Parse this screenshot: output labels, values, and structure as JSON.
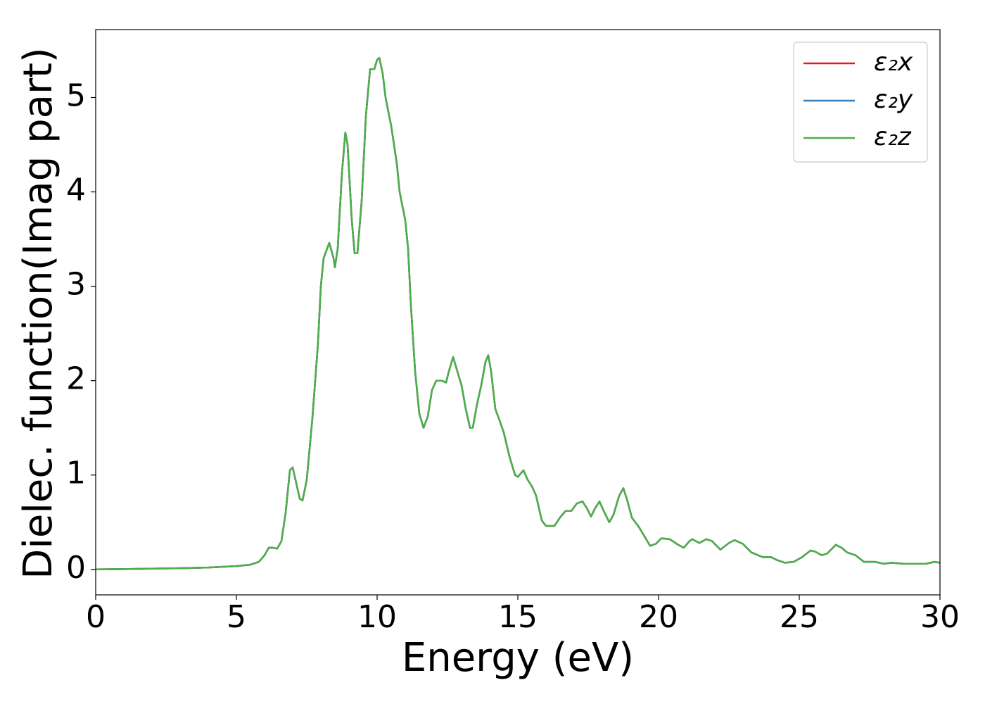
{
  "chart_data": {
    "type": "line",
    "xlabel": "Energy (eV)",
    "ylabel": "Dielec. function(Imag part)",
    "x": [
      0,
      1,
      2,
      3,
      4,
      5,
      5.5,
      5.8,
      6.0,
      6.15,
      6.3,
      6.45,
      6.6,
      6.75,
      6.9,
      7.0,
      7.1,
      7.25,
      7.35,
      7.5,
      7.7,
      7.9,
      8.0,
      8.1,
      8.3,
      8.45,
      8.5,
      8.6,
      8.75,
      8.87,
      8.95,
      9.1,
      9.2,
      9.3,
      9.45,
      9.6,
      9.75,
      9.9,
      10.0,
      10.08,
      10.2,
      10.3,
      10.5,
      10.7,
      10.8,
      11.0,
      11.1,
      11.2,
      11.35,
      11.5,
      11.65,
      11.8,
      11.95,
      12.1,
      12.3,
      12.45,
      12.55,
      12.7,
      12.85,
      13.0,
      13.15,
      13.3,
      13.4,
      13.55,
      13.7,
      13.85,
      13.95,
      14.05,
      14.2,
      14.35,
      14.5,
      14.7,
      14.9,
      15.0,
      15.2,
      15.35,
      15.5,
      15.65,
      15.85,
      16.0,
      16.3,
      16.5,
      16.7,
      16.9,
      17.1,
      17.3,
      17.45,
      17.6,
      17.75,
      17.9,
      18.05,
      18.25,
      18.4,
      18.6,
      18.75,
      18.9,
      19.05,
      19.3,
      19.5,
      19.7,
      19.9,
      20.1,
      20.4,
      20.7,
      20.9,
      21.1,
      21.2,
      21.45,
      21.7,
      21.9,
      22.2,
      22.5,
      22.7,
      23.0,
      23.3,
      23.7,
      24.0,
      24.2,
      24.5,
      24.8,
      25.1,
      25.4,
      25.55,
      25.8,
      26.0,
      26.3,
      26.5,
      26.7,
      27.0,
      27.3,
      27.7,
      28.0,
      28.3,
      28.7,
      29.0,
      29.5,
      29.8,
      30.0
    ],
    "series": [
      {
        "name": "ε₂x",
        "color": "#e41a1c",
        "values": [
          0.0,
          0.003,
          0.008,
          0.013,
          0.02,
          0.035,
          0.05,
          0.08,
          0.15,
          0.23,
          0.23,
          0.22,
          0.3,
          0.6,
          1.05,
          1.08,
          0.95,
          0.75,
          0.73,
          0.95,
          1.6,
          2.4,
          3.0,
          3.3,
          3.46,
          3.3,
          3.2,
          3.4,
          4.2,
          4.63,
          4.5,
          3.7,
          3.35,
          3.35,
          3.9,
          4.8,
          5.3,
          5.3,
          5.4,
          5.42,
          5.25,
          5.0,
          4.7,
          4.3,
          4.0,
          3.7,
          3.4,
          2.8,
          2.1,
          1.65,
          1.5,
          1.62,
          1.9,
          2.0,
          2.0,
          1.98,
          2.1,
          2.25,
          2.1,
          1.95,
          1.7,
          1.5,
          1.5,
          1.75,
          1.95,
          2.2,
          2.27,
          2.1,
          1.7,
          1.58,
          1.45,
          1.2,
          1.0,
          0.98,
          1.05,
          0.95,
          0.88,
          0.78,
          0.52,
          0.46,
          0.46,
          0.55,
          0.62,
          0.62,
          0.7,
          0.72,
          0.65,
          0.56,
          0.65,
          0.72,
          0.62,
          0.5,
          0.58,
          0.78,
          0.86,
          0.72,
          0.55,
          0.45,
          0.35,
          0.25,
          0.27,
          0.33,
          0.32,
          0.26,
          0.23,
          0.3,
          0.32,
          0.28,
          0.32,
          0.3,
          0.21,
          0.28,
          0.31,
          0.27,
          0.18,
          0.13,
          0.13,
          0.1,
          0.07,
          0.08,
          0.13,
          0.2,
          0.19,
          0.15,
          0.17,
          0.26,
          0.23,
          0.18,
          0.15,
          0.08,
          0.08,
          0.06,
          0.07,
          0.06,
          0.06,
          0.06,
          0.08,
          0.07
        ]
      },
      {
        "name": "ε₂y",
        "color": "#377eb8",
        "values": [
          0.0,
          0.003,
          0.008,
          0.013,
          0.02,
          0.035,
          0.05,
          0.08,
          0.15,
          0.23,
          0.23,
          0.22,
          0.3,
          0.6,
          1.05,
          1.08,
          0.95,
          0.75,
          0.73,
          0.95,
          1.6,
          2.4,
          3.0,
          3.3,
          3.46,
          3.3,
          3.2,
          3.4,
          4.2,
          4.63,
          4.5,
          3.7,
          3.35,
          3.35,
          3.9,
          4.8,
          5.3,
          5.3,
          5.4,
          5.42,
          5.25,
          5.0,
          4.7,
          4.3,
          4.0,
          3.7,
          3.4,
          2.8,
          2.1,
          1.65,
          1.5,
          1.62,
          1.9,
          2.0,
          2.0,
          1.98,
          2.1,
          2.25,
          2.1,
          1.95,
          1.7,
          1.5,
          1.5,
          1.75,
          1.95,
          2.2,
          2.27,
          2.1,
          1.7,
          1.58,
          1.45,
          1.2,
          1.0,
          0.98,
          1.05,
          0.95,
          0.88,
          0.78,
          0.52,
          0.46,
          0.46,
          0.55,
          0.62,
          0.62,
          0.7,
          0.72,
          0.65,
          0.56,
          0.65,
          0.72,
          0.62,
          0.5,
          0.58,
          0.78,
          0.86,
          0.72,
          0.55,
          0.45,
          0.35,
          0.25,
          0.27,
          0.33,
          0.32,
          0.26,
          0.23,
          0.3,
          0.32,
          0.28,
          0.32,
          0.3,
          0.21,
          0.28,
          0.31,
          0.27,
          0.18,
          0.13,
          0.13,
          0.1,
          0.07,
          0.08,
          0.13,
          0.2,
          0.19,
          0.15,
          0.17,
          0.26,
          0.23,
          0.18,
          0.15,
          0.08,
          0.08,
          0.06,
          0.07,
          0.06,
          0.06,
          0.06,
          0.08,
          0.07
        ]
      },
      {
        "name": "ε₂z",
        "color": "#4daf4a",
        "values": [
          0.0,
          0.003,
          0.008,
          0.013,
          0.02,
          0.035,
          0.05,
          0.08,
          0.15,
          0.23,
          0.23,
          0.22,
          0.3,
          0.6,
          1.05,
          1.08,
          0.95,
          0.75,
          0.73,
          0.95,
          1.6,
          2.4,
          3.0,
          3.3,
          3.46,
          3.3,
          3.2,
          3.4,
          4.2,
          4.63,
          4.5,
          3.7,
          3.35,
          3.35,
          3.9,
          4.8,
          5.3,
          5.3,
          5.4,
          5.42,
          5.25,
          5.0,
          4.7,
          4.3,
          4.0,
          3.7,
          3.4,
          2.8,
          2.1,
          1.65,
          1.5,
          1.62,
          1.9,
          2.0,
          2.0,
          1.98,
          2.1,
          2.25,
          2.1,
          1.95,
          1.7,
          1.5,
          1.5,
          1.75,
          1.95,
          2.2,
          2.27,
          2.1,
          1.7,
          1.58,
          1.45,
          1.2,
          1.0,
          0.98,
          1.05,
          0.95,
          0.88,
          0.78,
          0.52,
          0.46,
          0.46,
          0.55,
          0.62,
          0.62,
          0.7,
          0.72,
          0.65,
          0.56,
          0.65,
          0.72,
          0.62,
          0.5,
          0.58,
          0.78,
          0.86,
          0.72,
          0.55,
          0.45,
          0.35,
          0.25,
          0.27,
          0.33,
          0.32,
          0.26,
          0.23,
          0.3,
          0.32,
          0.28,
          0.32,
          0.3,
          0.21,
          0.28,
          0.31,
          0.27,
          0.18,
          0.13,
          0.13,
          0.1,
          0.07,
          0.08,
          0.13,
          0.2,
          0.19,
          0.15,
          0.17,
          0.26,
          0.23,
          0.18,
          0.15,
          0.08,
          0.08,
          0.06,
          0.07,
          0.06,
          0.06,
          0.06,
          0.08,
          0.07
        ]
      }
    ],
    "xlim": [
      0,
      30
    ],
    "xticks": [
      0,
      5,
      10,
      15,
      20,
      25,
      30
    ],
    "ylim": [
      -0.27,
      5.72
    ],
    "yticks": [
      0,
      1,
      2,
      3,
      4,
      5
    ],
    "legend": "upper right"
  }
}
